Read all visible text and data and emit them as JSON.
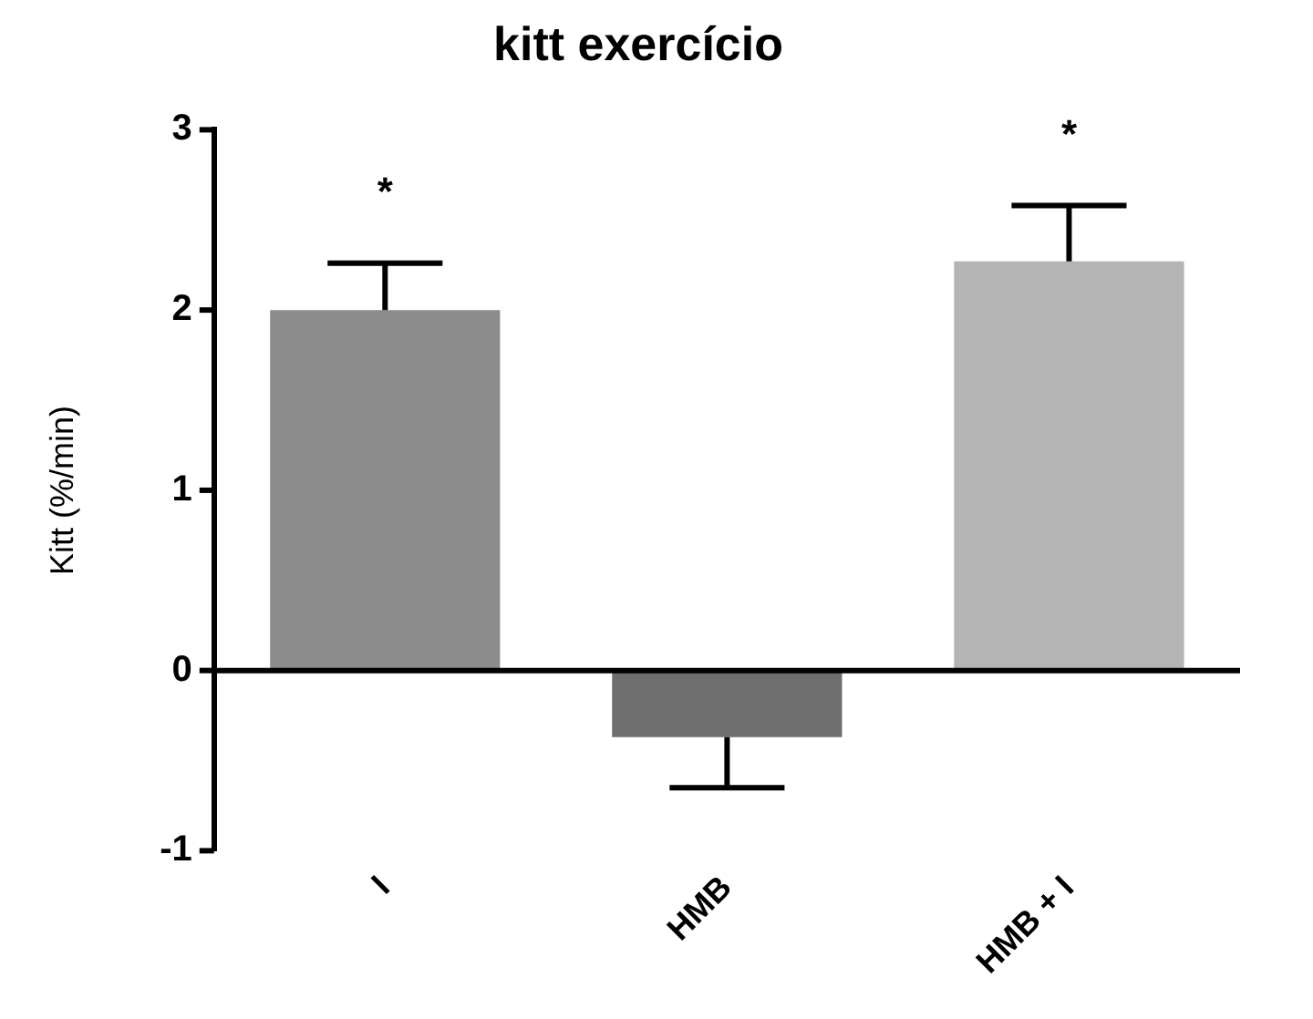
{
  "chart_data": {
    "type": "bar",
    "title": "kitt exercício",
    "ylabel": "Kitt (%/min)",
    "categories": [
      "I",
      "HMB",
      "HMB + I"
    ],
    "values": [
      2.0,
      -0.37,
      2.27
    ],
    "colors": [
      "#8c8c8c",
      "#6e6e6e",
      "#b4b4b4"
    ],
    "errors": [
      [
        2.0,
        2.26
      ],
      [
        -0.65,
        -0.37
      ],
      [
        2.27,
        2.58
      ]
    ],
    "ref_lines": [
      {
        "axis": "y",
        "value": 0,
        "color": "#000000"
      }
    ],
    "ylim": [
      -1,
      3
    ],
    "yticks": [
      -1,
      0,
      1,
      2,
      3
    ],
    "grid": false,
    "legend": false,
    "annotations": [
      {
        "text": "*",
        "x": "I",
        "y": 2.26
      },
      {
        "text": "*",
        "x": "HMB + I",
        "y": 2.58
      }
    ]
  }
}
